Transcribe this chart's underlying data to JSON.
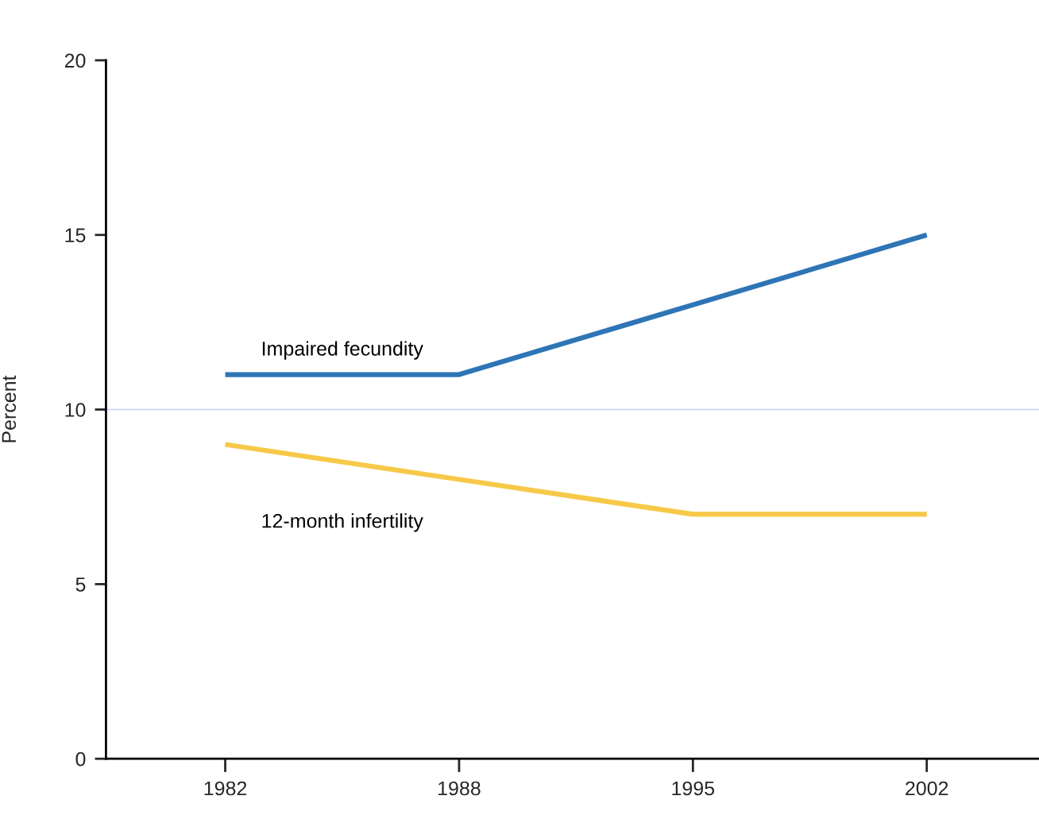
{
  "chart_data": {
    "type": "line",
    "ylabel": "Percent",
    "categories": [
      "1982",
      "1988",
      "1995",
      "2002"
    ],
    "series": [
      {
        "name": "Impaired fecundity",
        "color": "#2e75b6",
        "values": [
          11,
          11,
          13,
          15
        ]
      },
      {
        "name": "12-month infertility",
        "color": "#f7c948",
        "values": [
          9,
          8,
          7,
          7
        ]
      }
    ],
    "ylim": [
      0,
      20
    ],
    "yticks": [
      0,
      5,
      10,
      15,
      20
    ],
    "ref_lines": [
      {
        "axis": "y",
        "value": 10,
        "color": "#c8ccff"
      }
    ],
    "grid": false,
    "legend": false,
    "marker": "none",
    "line_style": "solid"
  }
}
